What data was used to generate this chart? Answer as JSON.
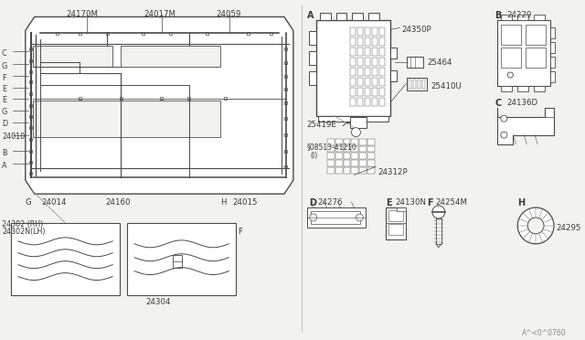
{
  "bg_color": "#f2f2ee",
  "line_color": "#4a4a4a",
  "text_color": "#3a3a3a",
  "label_color": "#666666",
  "part_numbers_top": [
    "24170M",
    "24017M",
    "24059"
  ],
  "left_labels": [
    "C",
    "G",
    "F",
    "E",
    "E",
    "G",
    "D",
    "24010",
    "B",
    "A"
  ],
  "bottom_car_labels": [
    "G",
    "24014",
    "24160",
    "H",
    "24015"
  ],
  "door_labels": [
    "24302 (RH)",
    "24302N(LH)",
    "F",
    "24304"
  ],
  "section_labels": [
    "A",
    "B",
    "C",
    "D",
    "E",
    "F",
    "H"
  ],
  "parts_A": [
    "24350P",
    "25464",
    "25410U",
    "25419E",
    "08513-41210\n(I)",
    "24312P"
  ],
  "parts_B": [
    "24229"
  ],
  "parts_C": [
    "24136D"
  ],
  "parts_D": [
    "24276"
  ],
  "parts_E": [
    "24130N"
  ],
  "parts_F": [
    "24254M"
  ],
  "parts_H": [
    "24295"
  ],
  "bottom_code": "A^<0^0760"
}
